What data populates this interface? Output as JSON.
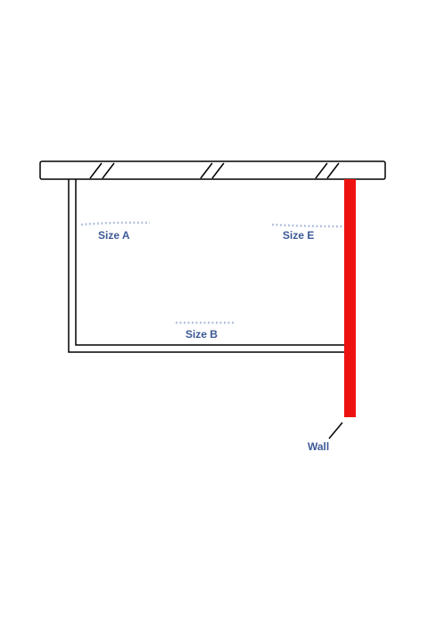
{
  "labels": {
    "size_a": "Size A",
    "size_e": "Size E",
    "size_b": "Size B",
    "wall": "Wall"
  },
  "colors": {
    "line": "#000000",
    "wall": "#ee1111",
    "label": "#3d5a96",
    "dotted": "#b4c2dc",
    "background": "#ffffff"
  }
}
